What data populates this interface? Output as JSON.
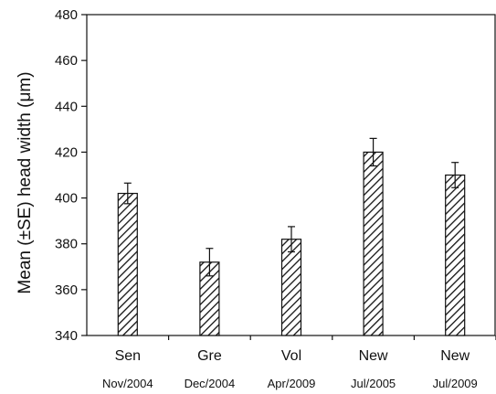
{
  "chart_data": {
    "type": "bar",
    "title": "",
    "xlabel": "",
    "ylabel": "Mean (±SE) head width (μm)",
    "ylim": [
      340,
      480
    ],
    "yticks": [
      340,
      360,
      380,
      400,
      420,
      440,
      460,
      480
    ],
    "grid": false,
    "categories": [
      "Sen",
      "Gre",
      "Vol",
      "New",
      "New"
    ],
    "category_dates": [
      "Nov/2004",
      "Dec/2004",
      "Apr/2009",
      "Jul/2005",
      "Jul/2009"
    ],
    "values": [
      402,
      372,
      382,
      420,
      410
    ],
    "errors": [
      4.5,
      6,
      5.5,
      6,
      5.5
    ],
    "bar_fill": "diagonal-hatch",
    "bar_color": "#111111"
  }
}
